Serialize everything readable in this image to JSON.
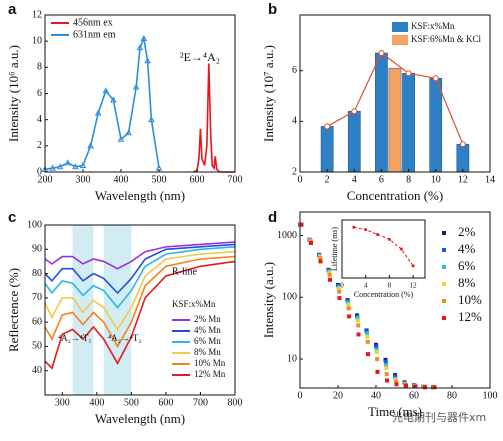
{
  "chart_data": [
    {
      "type": "line",
      "panel_label": "a",
      "xlabel": "Wavelength (nm)",
      "ylabel": "Intensity (10⁶ a.u.)",
      "xlim": [
        200,
        700
      ],
      "xticks": [
        200,
        300,
        400,
        500,
        600,
        700
      ],
      "ylim": [
        0,
        12
      ],
      "yticks": [
        0,
        2,
        4,
        6,
        8,
        10,
        12
      ],
      "annotations": [
        "²E→⁴A₂"
      ],
      "series": [
        {
          "name": "456nm ex",
          "color": "#e8151b",
          "x": [
            590,
            600,
            605,
            609,
            613,
            620,
            626,
            631,
            636,
            640,
            645,
            648,
            652,
            660,
            680,
            700
          ],
          "values": [
            0,
            0.1,
            1,
            3.3,
            1,
            0.5,
            2,
            8.3,
            3,
            0.5,
            0.3,
            1.2,
            0.2,
            0,
            0,
            0
          ]
        },
        {
          "name": "631nm em",
          "color": "#2a8fe0",
          "marker": "triangle",
          "x": [
            200,
            220,
            240,
            260,
            280,
            300,
            320,
            340,
            360,
            380,
            400,
            420,
            440,
            450,
            460,
            470,
            480,
            500
          ],
          "values": [
            0.2,
            0.3,
            0.4,
            0.7,
            0.4,
            0.5,
            2,
            4.5,
            6.2,
            5.5,
            2.5,
            3,
            6.5,
            9.5,
            10.2,
            8.5,
            4,
            0.3
          ]
        }
      ]
    },
    {
      "type": "bar",
      "panel_label": "b",
      "xlabel": "Concentration (%)",
      "ylabel": "Intensity (10⁷ a.u.)",
      "xlim": [
        0,
        14
      ],
      "xticks": [
        0,
        2,
        4,
        6,
        8,
        10,
        12,
        14
      ],
      "ylim": [
        2,
        8.2
      ],
      "yticks": [
        2,
        4,
        6
      ],
      "connect_line": true,
      "series": [
        {
          "name": "KSF:x%Mn",
          "color": "#2f7fc4",
          "x": [
            2,
            4,
            6,
            8,
            10,
            12
          ],
          "values": [
            3.8,
            4.4,
            6.7,
            5.9,
            5.7,
            3.1
          ]
        },
        {
          "name": "KSF:6%Mn & KCl",
          "color": "#f4a261",
          "x": [
            7
          ],
          "values": [
            6.1
          ]
        }
      ]
    },
    {
      "type": "line",
      "panel_label": "c",
      "xlabel": "Wavelength (nm)",
      "ylabel": "Reflectence (%)",
      "xlim": [
        250,
        800
      ],
      "xticks": [
        300,
        400,
        500,
        600,
        700,
        800
      ],
      "ylim": [
        30,
        100
      ],
      "yticks": [
        40,
        50,
        60,
        70,
        80,
        90,
        100
      ],
      "shaded_ranges": [
        [
          330,
          390
        ],
        [
          420,
          500
        ]
      ],
      "annotations": [
        "R-line",
        "⁴A₂→⁴T₁",
        "⁴A₂→⁴T₂"
      ],
      "legend_title": "KSF:x%Mn",
      "x": [
        250,
        270,
        300,
        330,
        360,
        390,
        420,
        460,
        500,
        540,
        600,
        700,
        800
      ],
      "series": [
        {
          "name": "2% Mn",
          "color": "#9b30d9",
          "values": [
            86,
            84,
            87,
            87,
            84,
            86,
            85,
            82,
            85,
            89,
            91,
            92,
            93
          ]
        },
        {
          "name": "4% Mn",
          "color": "#1f4fe0",
          "values": [
            80,
            77,
            82,
            82,
            77,
            80,
            78,
            72,
            78,
            86,
            90,
            91,
            92
          ]
        },
        {
          "name": "6% Mn",
          "color": "#2bb5e8",
          "values": [
            76,
            72,
            77,
            76,
            71,
            75,
            73,
            66,
            73,
            83,
            88,
            90,
            91
          ]
        },
        {
          "name": "8% Mn",
          "color": "#f2c84b",
          "values": [
            68,
            62,
            70,
            70,
            64,
            69,
            66,
            57,
            66,
            79,
            86,
            88,
            89
          ]
        },
        {
          "name": "10% Mn",
          "color": "#f5821f",
          "values": [
            58,
            53,
            63,
            64,
            59,
            64,
            60,
            50,
            60,
            75,
            83,
            86,
            87
          ]
        },
        {
          "name": "12% Mn",
          "color": "#e41a1c",
          "values": [
            44,
            41,
            55,
            57,
            53,
            58,
            53,
            43,
            54,
            70,
            79,
            83,
            85
          ]
        }
      ]
    },
    {
      "type": "scatter",
      "panel_label": "d",
      "xlabel": "Time (ms)",
      "ylabel": "Intensity (a.u.)",
      "log_y": true,
      "xlim": [
        0,
        100
      ],
      "xticks": [
        0,
        20,
        40,
        60,
        80,
        100
      ],
      "ylim": [
        3.4,
        2400
      ],
      "yticks": [
        10,
        100,
        1000
      ],
      "watermark": "光电期刊与器件xm",
      "x": [
        0,
        5,
        10,
        15,
        20,
        25,
        30,
        35,
        40,
        45,
        50,
        55,
        60,
        65,
        70
      ],
      "series": [
        {
          "name": "2%",
          "color": "#1a1a8c",
          "values": [
            1500,
            855,
            487,
            278,
            158,
            90,
            51,
            29,
            17,
            9.7,
            5.5,
            4.2,
            3.8,
            3.6,
            3.5
          ]
        },
        {
          "name": "4%",
          "color": "#1e5bd8",
          "values": [
            1500,
            849,
            480,
            272,
            154,
            87,
            49,
            28,
            16,
            9,
            5.2,
            4.1,
            3.8,
            3.6,
            3.5
          ]
        },
        {
          "name": "6%",
          "color": "#27c0e0",
          "values": [
            1500,
            838,
            469,
            262,
            146,
            82,
            46,
            26,
            14,
            8,
            4.8,
            4,
            3.7,
            3.6,
            3.5
          ]
        },
        {
          "name": "8%",
          "color": "#e8d53a",
          "values": [
            1500,
            827,
            456,
            251,
            139,
            76,
            42,
            23,
            13,
            7.2,
            4.6,
            3.9,
            3.7,
            3.6,
            3.5
          ]
        },
        {
          "name": "10%",
          "color": "#f28a1e",
          "values": [
            1500,
            803,
            430,
            230,
            123,
            66,
            35,
            19,
            10,
            5.7,
            4.3,
            3.8,
            3.6,
            3.5,
            3.5
          ]
        },
        {
          "name": "12%",
          "color": "#e31a1c",
          "values": [
            1500,
            756,
            381,
            192,
            97,
            49,
            25,
            12,
            6.2,
            4.5,
            3.9,
            3.7,
            3.6,
            3.5,
            3.5
          ]
        }
      ],
      "inset": {
        "type": "line",
        "xlabel": "Concentration (%)",
        "ylabel": "Lifetime (ms)",
        "color": "#e31a1c",
        "xlim": [
          0,
          14
        ],
        "xticks": [
          0,
          4,
          8,
          12
        ],
        "ylim": [
          6.8,
          9.2
        ],
        "x": [
          2,
          4,
          6,
          8,
          10,
          12
        ],
        "values": [
          8.9,
          8.8,
          8.6,
          8.4,
          8.0,
          7.3
        ]
      }
    }
  ]
}
